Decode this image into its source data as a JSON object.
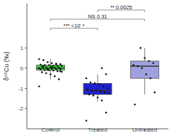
{
  "chart_data": {
    "type": "box",
    "y_label": "δ⁶⁵Cu (‰)",
    "categories": [
      "Control",
      "Treated",
      "Untreated"
    ],
    "colors": [
      "#3ddc3d",
      "#2020d0",
      "#a0a0e0"
    ],
    "boxes": [
      {
        "whisker_low": -0.55,
        "q1": -0.1,
        "median": 0.0,
        "q3": 0.15,
        "whisker_high": 0.45
      },
      {
        "whisker_low": -1.65,
        "q1": -1.3,
        "median": -1.1,
        "q3": -0.75,
        "whisker_high": -0.3
      },
      {
        "whisker_low": -1.3,
        "q1": -0.5,
        "median": 0.1,
        "q3": 0.35,
        "whisker_high": 1.0
      }
    ],
    "points": [
      [
        0.45,
        0.4,
        0.3,
        0.25,
        0.22,
        0.2,
        0.18,
        0.15,
        0.15,
        0.12,
        0.1,
        0.1,
        0.08,
        0.05,
        0.05,
        0.03,
        0.02,
        0.0,
        0.0,
        -0.02,
        -0.03,
        -0.05,
        -0.05,
        -0.07,
        -0.1,
        -0.1,
        -0.12,
        -0.15,
        -0.18,
        -0.2,
        -0.25,
        -0.3,
        -0.4,
        -0.55,
        -0.9,
        0.1,
        -0.08,
        0.06,
        0.2,
        -0.15
      ],
      [
        0.0,
        -0.3,
        -0.5,
        -0.7,
        -0.75,
        -0.8,
        -0.9,
        -1.0,
        -1.05,
        -1.1,
        -1.1,
        -1.15,
        -1.2,
        -1.25,
        -1.3,
        -1.35,
        -1.45,
        -1.6,
        -2.2,
        -2.6
      ],
      [
        1.0,
        0.5,
        0.35,
        0.25,
        0.15,
        0.1,
        0.0,
        -0.3,
        -0.5,
        -1.2,
        -1.8
      ]
    ],
    "annotations": [
      {
        "text": "*** <10⁻⁴",
        "from": "Control",
        "to": "Treated"
      },
      {
        "text": "NS 0.31",
        "from": "Control",
        "to": "Untreated"
      },
      {
        "text": "** 0.0025",
        "from": "Treated",
        "to": "Untreated"
      }
    ],
    "ylim": [
      -3,
      3.2
    ],
    "yticks": [
      -2,
      -1,
      0,
      1
    ],
    "grid": false
  }
}
